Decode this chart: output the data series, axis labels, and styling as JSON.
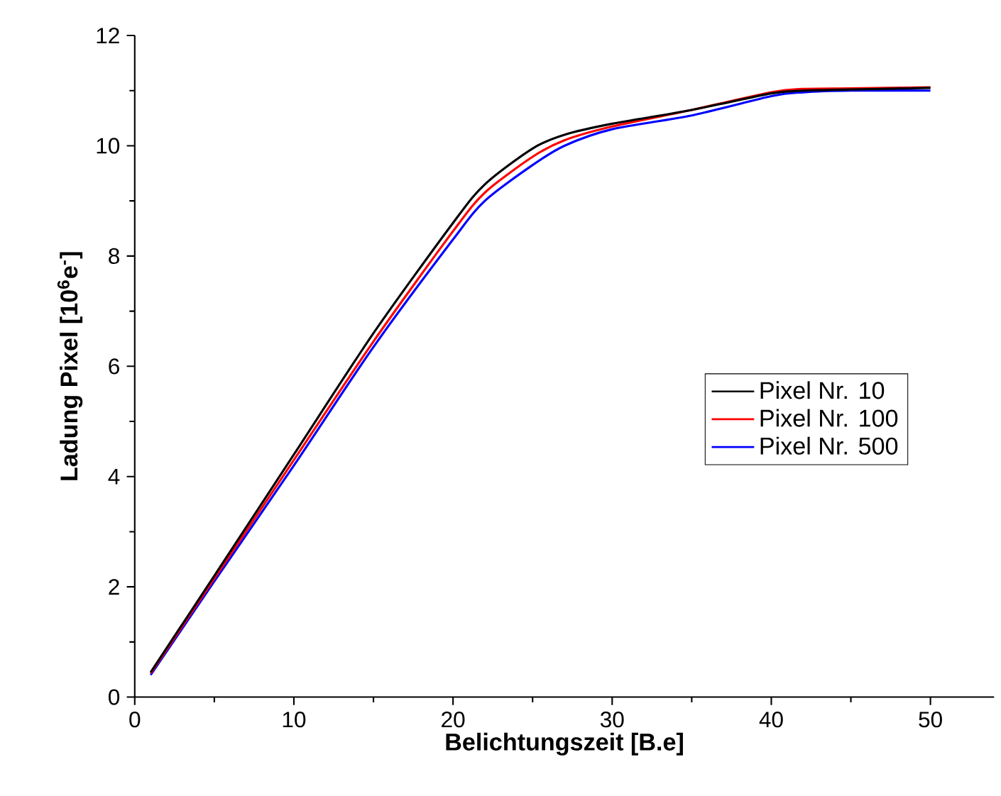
{
  "chart_data": {
    "type": "line",
    "xlabel": "Belichtungszeit [B.e]",
    "ylabel": "Ladung Pixel [10$^{6}$e$^{-}$]",
    "xlim": [
      0,
      54
    ],
    "ylim": [
      0,
      12
    ],
    "xticks": [
      0,
      10,
      20,
      30,
      40,
      50
    ],
    "yticks": [
      0,
      2,
      4,
      6,
      8,
      10,
      12
    ],
    "legend": "right",
    "grid": false,
    "line_style": "solid",
    "marker": "none",
    "series": [
      {
        "name": "Pixel Nr. 10",
        "color": "#000000",
        "x": [
          1,
          5,
          10,
          15,
          20,
          22,
          25,
          27,
          30,
          35,
          40,
          42,
          45,
          50
        ],
        "values": [
          0.45,
          2.2,
          4.4,
          6.6,
          8.6,
          9.3,
          9.95,
          10.2,
          10.4,
          10.65,
          10.95,
          11.0,
          11.02,
          11.05
        ]
      },
      {
        "name": "Pixel Nr. 100",
        "color": "#ff0000",
        "x": [
          1,
          5,
          10,
          15,
          20,
          22,
          25,
          27,
          30,
          35,
          40,
          42,
          45,
          50
        ],
        "values": [
          0.43,
          2.15,
          4.3,
          6.45,
          8.45,
          9.15,
          9.8,
          10.1,
          10.35,
          10.65,
          10.97,
          11.03,
          11.04,
          11.06
        ]
      },
      {
        "name": "Pixel Nr. 500",
        "color": "#0000ff",
        "x": [
          1,
          5,
          10,
          15,
          20,
          22,
          25,
          27,
          30,
          35,
          40,
          42,
          45,
          50
        ],
        "values": [
          0.4,
          2.1,
          4.2,
          6.35,
          8.3,
          9.0,
          9.65,
          10.0,
          10.3,
          10.55,
          10.9,
          10.97,
          11.0,
          11.0
        ]
      }
    ]
  }
}
